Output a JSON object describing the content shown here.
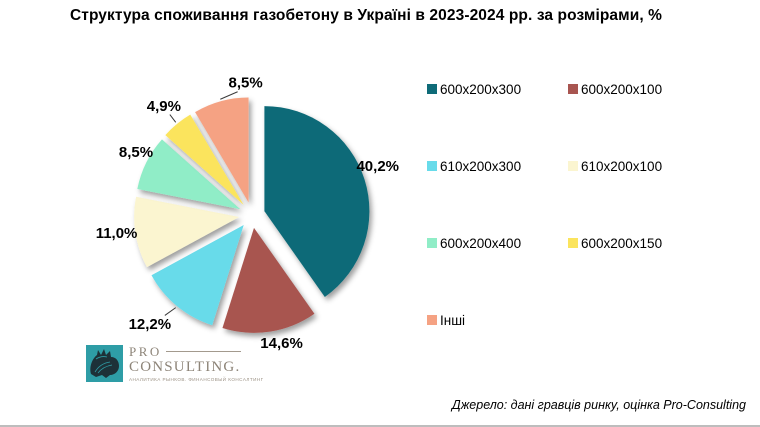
{
  "title": "Структура споживання газобетону в Україні в 2023-2024 рр. за розмірами, %",
  "source_note": "Джерело: дані гравців ринку, оцінка Pro-Consulting",
  "logo": {
    "line1": "PRO",
    "line2": "CONSULTING.",
    "tagline": "АНАЛИТИКА РЫНКОВ. ФИНАНСОВЫЙ КОНСАЛТИНГ",
    "square_color": "#2E9DA6"
  },
  "chart_data": {
    "type": "pie",
    "title": "Структура споживання газобетону в Україні в 2023-2024 рр. за розмірами, %",
    "legend_position": "right",
    "start_angle_deg": 0,
    "direction": "clockwise",
    "exploded": true,
    "slices": [
      {
        "label": "600x200x300",
        "value": 40.2,
        "display": "40,2%",
        "color": "#0E6B78",
        "leader": false
      },
      {
        "label": "600x200x100",
        "value": 14.6,
        "display": "14,6%",
        "color": "#A85550",
        "leader": false
      },
      {
        "label": "610x200x300",
        "value": 12.2,
        "display": "12,2%",
        "color": "#68DBEA",
        "leader": true
      },
      {
        "label": "610x200x100",
        "value": 11.0,
        "display": "11,0%",
        "color": "#FBF5D0",
        "leader": false
      },
      {
        "label": "600x200x400",
        "value": 8.5,
        "display": "8,5%",
        "color": "#90EDC7",
        "leader": false
      },
      {
        "label": "600x200x150",
        "value": 4.9,
        "display": "4,9%",
        "color": "#FBE45D",
        "leader": true
      },
      {
        "label": "Інші",
        "value": 8.5,
        "display": "8,5%",
        "color": "#F5A283",
        "leader": true
      }
    ]
  }
}
